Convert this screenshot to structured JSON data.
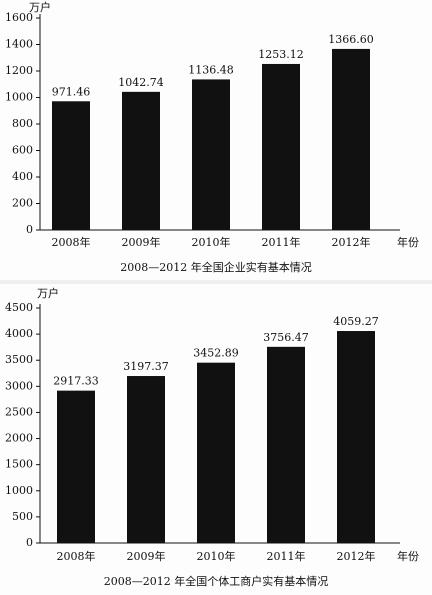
{
  "chart_data": [
    {
      "type": "bar",
      "title": "2008—2012 年全国企业实有基本情况",
      "y_label": "万户",
      "x_label": "年份",
      "categories": [
        "2008年",
        "2009年",
        "2010年",
        "2011年",
        "2012年"
      ],
      "values": [
        971.46,
        1042.74,
        1136.48,
        1253.12,
        1366.6
      ],
      "value_labels": [
        "971.46",
        "1042.74",
        "1136.48",
        "1253.12",
        "1366.60"
      ],
      "color": "#111111",
      "ylim": [
        0,
        1600
      ],
      "yticks": [
        0,
        200,
        400,
        600,
        800,
        1000,
        1200,
        1400,
        1600
      ]
    },
    {
      "type": "bar",
      "title": "2008—2012 年全国个体工商户实有基本情况",
      "y_label": "万户",
      "x_label": "年份",
      "categories": [
        "2008年",
        "2009年",
        "2010年",
        "2011年",
        "2012年"
      ],
      "values": [
        2917.33,
        3197.37,
        3452.89,
        3756.47,
        4059.27
      ],
      "value_labels": [
        "2917.33",
        "3197.37",
        "3452.89",
        "3756.47",
        "4059.27"
      ],
      "color": "#111111",
      "ylim": [
        0,
        4500
      ],
      "yticks": [
        0,
        500,
        1000,
        1500,
        2000,
        2500,
        3000,
        3500,
        4000,
        4500
      ]
    }
  ]
}
